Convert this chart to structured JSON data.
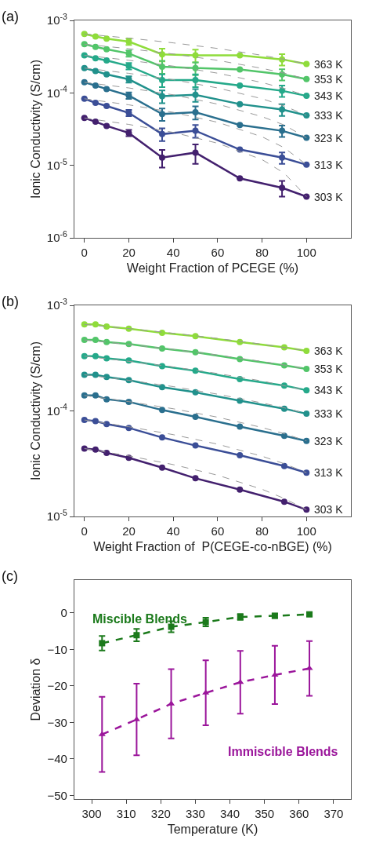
{
  "chart_data": [
    {
      "type": "line",
      "title": "(a)",
      "xlabel": "Weight Fraction of PCEGE (%)",
      "ylabel": "Ionic Conductivity (S/cm)",
      "log": "y",
      "grid": false,
      "legend": "right",
      "marker": "circle",
      "xlim": [
        -4.5,
        120
      ],
      "xticks": [
        0,
        20,
        40,
        60,
        80,
        100
      ],
      "ylim": [
        1e-06,
        0.001
      ],
      "yticks": [
        {
          "value": 0.001,
          "label": "10$^{-3}$"
        },
        {
          "value": 0.0001,
          "label": "10$^{-4}$"
        },
        {
          "value": 1e-05,
          "label": "10$^{-5}$"
        },
        {
          "value": 1e-06,
          "label": "10$^{-6}$"
        }
      ],
      "series": [
        {
          "color": "#999999",
          "line_style": "dashed",
          "marker": "none",
          "x": [
            0,
            20,
            40,
            60,
            80,
            90,
            100
          ],
          "values": [
            0.00065,
            0.00057,
            0.00049,
            0.00041,
            0.00033,
            0.00029,
            0.00025
          ]
        },
        {
          "color": "#999999",
          "line_style": "dashed",
          "marker": "none",
          "x": [
            0,
            20,
            40,
            60,
            80,
            90,
            100
          ],
          "values": [
            0.00047,
            0.000407,
            0.000344,
            0.000281,
            0.000218,
            0.000187,
            0.000155
          ]
        },
        {
          "color": "#999999",
          "line_style": "dashed",
          "marker": "none",
          "x": [
            0,
            20,
            40,
            60,
            80,
            90,
            100
          ],
          "values": [
            0.00033,
            0.000282,
            0.000234,
            0.000187,
            0.000139,
            0.000115,
            9.1e-05
          ]
        },
        {
          "color": "#999999",
          "line_style": "dashed",
          "marker": "none",
          "x": [
            0,
            20,
            40,
            60,
            80,
            90,
            100
          ],
          "values": [
            0.00022,
            0.000186,
            0.000152,
            0.000117,
            8.3e-05,
            6.6e-05,
            4.9e-05
          ]
        },
        {
          "color": "#999999",
          "line_style": "dashed",
          "marker": "none",
          "x": [
            0,
            20,
            40,
            60,
            80,
            90,
            100
          ],
          "values": [
            0.00014,
            0.000117,
            9.4e-05,
            7e-05,
            4.7e-05,
            3.6e-05,
            2.4e-05
          ]
        },
        {
          "color": "#999999",
          "line_style": "dashed",
          "marker": "none",
          "x": [
            0,
            20,
            40,
            60,
            80,
            90,
            100
          ],
          "values": [
            8.3e-05,
            6.84e-05,
            5.39e-05,
            3.93e-05,
            2.48e-05,
            1.75e-05,
            1.02e-05
          ]
        },
        {
          "color": "#999999",
          "line_style": "dashed",
          "marker": "none",
          "x": [
            0,
            20,
            40,
            60,
            80,
            90,
            100
          ],
          "values": [
            4.5e-05,
            3.67e-05,
            2.85e-05,
            2.02e-05,
            1.2e-05,
            7.8e-06,
            3.7e-06
          ]
        },
        {
          "name": "363 K",
          "color": "#8fdc3b",
          "x": [
            0,
            5,
            10,
            20,
            35,
            50,
            70,
            89,
            100
          ],
          "values": [
            0.00065,
            0.0006,
            0.00056,
            0.00051,
            0.00034,
            0.00033,
            0.00033,
            0.00029,
            0.00025
          ],
          "errors": [
            null,
            null,
            null,
            5.1e-05,
            6.8e-05,
            6.6e-05,
            null,
            5.2e-05,
            null
          ]
        },
        {
          "name": "353 K",
          "color": "#52c569",
          "x": [
            0,
            5,
            10,
            20,
            35,
            50,
            70,
            89,
            100
          ],
          "values": [
            0.00047,
            0.00043,
            0.0004,
            0.00035,
            0.00023,
            0.00022,
            0.00021,
            0.00018,
            0.000155
          ],
          "errors": [
            null,
            null,
            null,
            3.5e-05,
            4.6e-05,
            4.4e-05,
            null,
            3.2e-05,
            null
          ]
        },
        {
          "name": "343 K",
          "color": "#25a98a",
          "x": [
            0,
            5,
            10,
            20,
            35,
            50,
            70,
            89,
            100
          ],
          "values": [
            0.00033,
            0.0003,
            0.00028,
            0.000235,
            0.00015,
            0.00015,
            0.000126,
            0.000107,
            9.1e-05
          ],
          "errors": [
            null,
            null,
            null,
            2.4e-05,
            3e-05,
            3e-05,
            null,
            1.9e-05,
            null
          ]
        },
        {
          "name": "333 K",
          "color": "#21918c",
          "x": [
            0,
            5,
            10,
            20,
            35,
            50,
            70,
            89,
            100
          ],
          "values": [
            0.00022,
            0.0002,
            0.00018,
            0.000154,
            9e-05,
            9.4e-05,
            7e-05,
            5.9e-05,
            4.9e-05
          ],
          "errors": [
            null,
            null,
            null,
            1.5e-05,
            1.8e-05,
            1.9e-05,
            null,
            1.1e-05,
            null
          ]
        },
        {
          "name": "323 K",
          "color": "#2a6f8e",
          "x": [
            0,
            5,
            10,
            20,
            35,
            50,
            70,
            89,
            100
          ],
          "values": [
            0.00014,
            0.000126,
            0.000113,
            9.2e-05,
            5.1e-05,
            5.4e-05,
            3.6e-05,
            3e-05,
            2.4e-05
          ],
          "errors": [
            null,
            null,
            null,
            9.2e-06,
            1e-05,
            1.1e-05,
            null,
            5.4e-06,
            null
          ]
        },
        {
          "name": "313 K",
          "color": "#3b4e97",
          "x": [
            0,
            5,
            10,
            20,
            35,
            50,
            70,
            89,
            100
          ],
          "values": [
            8.3e-05,
            7.3e-05,
            6.6e-05,
            5.3e-05,
            2.7e-05,
            3e-05,
            1.65e-05,
            1.28e-05,
            1.02e-05
          ],
          "errors": [
            null,
            null,
            null,
            5.3e-06,
            5.4e-06,
            6e-06,
            null,
            2.3e-06,
            null
          ]
        },
        {
          "name": "303 K",
          "color": "#43206e",
          "x": [
            0,
            5,
            10,
            20,
            35,
            50,
            70,
            89,
            100
          ],
          "values": [
            4.5e-05,
            4e-05,
            3.5e-05,
            2.8e-05,
            1.28e-05,
            1.5e-05,
            6.6e-06,
            4.9e-06,
            3.7e-06
          ],
          "errors": [
            null,
            null,
            null,
            2.8e-06,
            3.5e-06,
            4.5e-06,
            null,
            1.2e-06,
            null
          ]
        }
      ]
    },
    {
      "type": "line",
      "title": "(b)",
      "xlabel": "Weight Fraction of  P(CEGE-co-nBGE) (%)",
      "ylabel": "Ionic Conductivity (S/cm)",
      "log": "y",
      "grid": false,
      "legend": "right",
      "marker": "circle",
      "xlim": [
        -4.5,
        120
      ],
      "xticks": [
        0,
        20,
        40,
        60,
        80,
        100
      ],
      "ylim": [
        1e-05,
        0.001
      ],
      "yticks": [
        {
          "value": 0.001,
          "label": "10$^{-3}$"
        },
        {
          "value": 0.0001,
          "label": "10$^{-4}$"
        },
        {
          "value": 1e-05,
          "label": "10$^{-5}$"
        }
      ],
      "series": [
        {
          "color": "#999999",
          "line_style": "dashed",
          "marker": "none",
          "x": [
            0,
            20,
            40,
            60,
            80,
            90,
            100
          ],
          "values": [
            0.00066,
            0.000602,
            0.000544,
            0.000486,
            0.000428,
            0.000399,
            0.00037
          ]
        },
        {
          "color": "#999999",
          "line_style": "dashed",
          "marker": "none",
          "x": [
            0,
            20,
            40,
            60,
            80,
            90,
            100
          ],
          "values": [
            0.00047,
            0.000426,
            0.000382,
            0.000338,
            0.000294,
            0.000272,
            0.00025
          ]
        },
        {
          "color": "#999999",
          "line_style": "dashed",
          "marker": "none",
          "x": [
            0,
            20,
            40,
            60,
            80,
            90,
            100
          ],
          "values": [
            0.00033,
            0.000295,
            0.000261,
            0.000226,
            0.000192,
            0.000173,
            0.000157
          ]
        },
        {
          "color": "#999999",
          "line_style": "dashed",
          "marker": "none",
          "x": [
            0,
            20,
            40,
            60,
            80,
            90,
            100
          ],
          "values": [
            0.00022,
            0.000195,
            0.00017,
            0.000144,
            0.000119,
            0.000107,
            9.4e-05
          ]
        },
        {
          "color": "#999999",
          "line_style": "dashed",
          "marker": "none",
          "x": [
            0,
            20,
            40,
            60,
            80,
            90,
            100
          ],
          "values": [
            0.00014,
            0.0001224,
            0.0001048,
            8.72e-05,
            6.96e-05,
            6.08e-05,
            5.2e-05
          ]
        },
        {
          "color": "#999999",
          "line_style": "dashed",
          "marker": "none",
          "x": [
            0,
            20,
            40,
            60,
            80,
            90,
            100
          ],
          "values": [
            8.2e-05,
            7.08e-05,
            5.96e-05,
            4.84e-05,
            3.72e-05,
            3.16e-05,
            2.6e-05
          ]
        },
        {
          "color": "#999999",
          "line_style": "dashed",
          "marker": "none",
          "x": [
            0,
            20,
            40,
            60,
            80,
            90,
            100
          ],
          "values": [
            4.4e-05,
            3.75e-05,
            3.1e-05,
            2.46e-05,
            1.81e-05,
            1.48e-05,
            1.16e-05
          ]
        },
        {
          "name": "363 K",
          "color": "#8fdc3b",
          "x": [
            0,
            5,
            10,
            20,
            35,
            50,
            70,
            90,
            100
          ],
          "values": [
            0.00066,
            0.00066,
            0.00063,
            0.0006,
            0.00055,
            0.00051,
            0.00045,
            0.0004,
            0.00037
          ]
        },
        {
          "name": "353 K",
          "color": "#52c569",
          "x": [
            0,
            5,
            10,
            20,
            35,
            50,
            70,
            90,
            100
          ],
          "values": [
            0.00047,
            0.00047,
            0.00045,
            0.00043,
            0.00039,
            0.00036,
            0.00031,
            0.00027,
            0.00025
          ]
        },
        {
          "name": "343 K",
          "color": "#25a98a",
          "x": [
            0,
            5,
            10,
            20,
            35,
            50,
            70,
            90,
            100
          ],
          "values": [
            0.00033,
            0.00033,
            0.000315,
            0.0003,
            0.000265,
            0.00024,
            0.0002,
            0.000174,
            0.000157
          ]
        },
        {
          "name": "333 K",
          "color": "#21918c",
          "x": [
            0,
            5,
            10,
            20,
            35,
            50,
            70,
            90,
            100
          ],
          "values": [
            0.00022,
            0.00022,
            0.00021,
            0.000196,
            0.000168,
            0.00015,
            0.000125,
            0.000105,
            9.4e-05
          ]
        },
        {
          "name": "323 K",
          "color": "#2a6f8e",
          "x": [
            0,
            5,
            10,
            20,
            35,
            50,
            70,
            90,
            100
          ],
          "values": [
            0.00014,
            0.00014,
            0.000129,
            0.000122,
            0.000102,
            8.8e-05,
            7.1e-05,
            5.8e-05,
            5.2e-05
          ]
        },
        {
          "name": "313 K",
          "color": "#3b4e97",
          "x": [
            0,
            5,
            10,
            20,
            35,
            50,
            70,
            90,
            100
          ],
          "values": [
            8.2e-05,
            8e-05,
            7.5e-05,
            6.9e-05,
            5.6e-05,
            4.7e-05,
            3.8e-05,
            3e-05,
            2.6e-05
          ]
        },
        {
          "name": "303 K",
          "color": "#43206e",
          "x": [
            0,
            5,
            10,
            20,
            35,
            50,
            70,
            90,
            100
          ],
          "values": [
            4.4e-05,
            4.3e-05,
            4e-05,
            3.6e-05,
            2.9e-05,
            2.3e-05,
            1.8e-05,
            1.38e-05,
            1.16e-05
          ]
        }
      ]
    },
    {
      "type": "line",
      "title": "(c)",
      "xlabel": "Temperature (K)",
      "ylabel": "Deviation δ",
      "grid": false,
      "legend": false,
      "line_style": "dashed",
      "xlim": [
        295,
        375
      ],
      "xticks": [
        300,
        310,
        320,
        330,
        340,
        350,
        360,
        370
      ],
      "ylim": [
        -51,
        9
      ],
      "yticks": [
        {
          "value": -50,
          "label": "−50"
        },
        {
          "value": -40,
          "label": "−40"
        },
        {
          "value": -30,
          "label": "−30"
        },
        {
          "value": -20,
          "label": "−20"
        },
        {
          "value": -10,
          "label": "−10"
        },
        0
      ],
      "series": [
        {
          "name": "Miscible Blends",
          "color": "#1b7a1b",
          "marker": "square",
          "x": [
            303,
            313,
            323,
            333,
            343,
            353,
            363
          ],
          "values": [
            -8.3,
            -6.1,
            -3.8,
            -2.5,
            -1.1,
            -0.8,
            -0.4
          ],
          "errors": [
            2,
            1.7,
            1.5,
            1.2,
            0.8,
            0.6,
            0.5
          ]
        },
        {
          "name": "Immiscible Blends",
          "color": "#9b169b",
          "marker": "triangle",
          "x": [
            303,
            313,
            323,
            333,
            343,
            353,
            363
          ],
          "values": [
            -33.3,
            -29.2,
            -24.9,
            -21.9,
            -19,
            -17,
            -15.2
          ],
          "errors": [
            10.3,
            9.8,
            9.5,
            8.9,
            8.6,
            8,
            7.5
          ]
        }
      ]
    }
  ]
}
